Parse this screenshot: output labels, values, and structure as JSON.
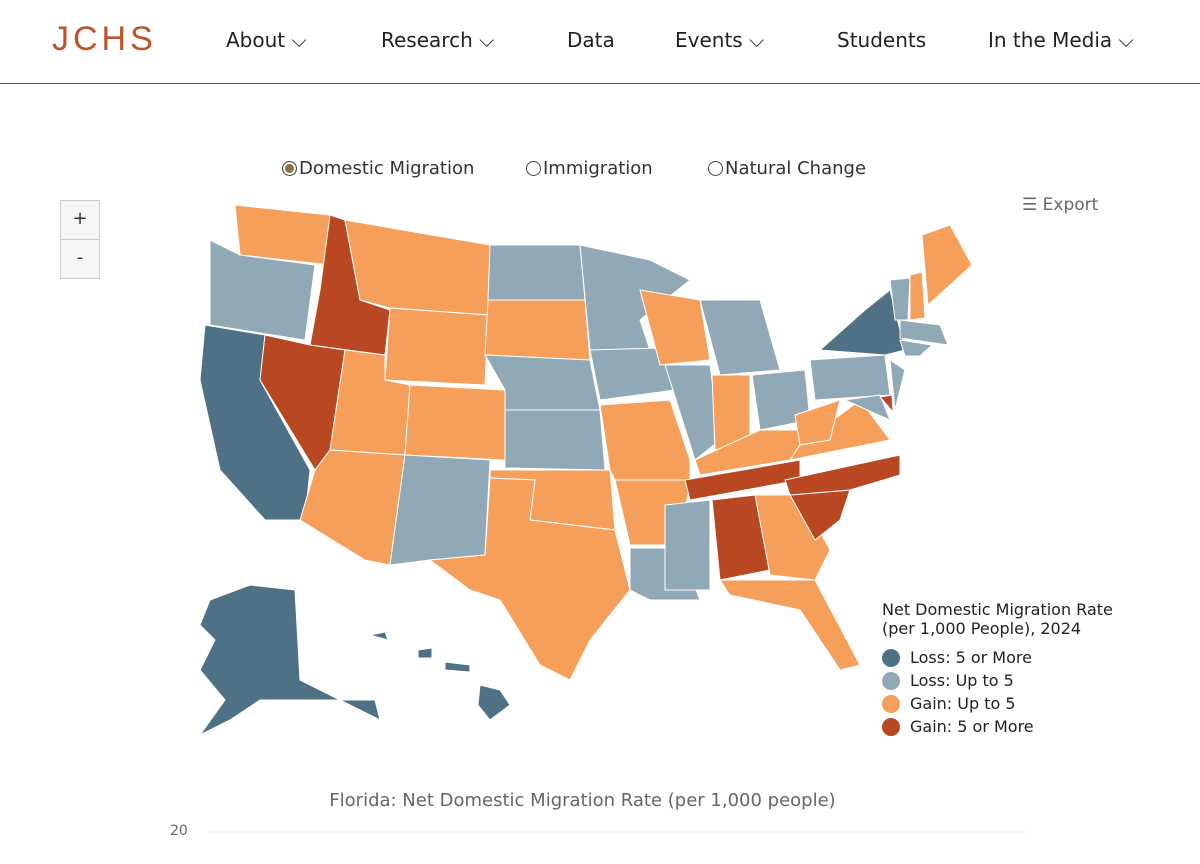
{
  "nav": {
    "logo": "JCHS",
    "items": [
      "About",
      "Research",
      "Data",
      "Events",
      "Students",
      "In the Media"
    ]
  },
  "options": [
    "Domestic Migration",
    "Immigration",
    "Natural Change"
  ],
  "zoom": [
    "+",
    "-"
  ],
  "export": "Export",
  "legend": {
    "title": "Net Domestic Migration Rate (per 1,000 People), 2024",
    "items": [
      {
        "label": "Loss: 5 or More",
        "color": "#4e7186"
      },
      {
        "label": "Loss: Up to 5",
        "color": "#91a8b6"
      },
      {
        "label": "Gain: Up to 5",
        "color": "#f59f5b"
      },
      {
        "label": "Gain: 5 or More",
        "color": "#b84722"
      }
    ]
  },
  "chart": {
    "title": "Florida: Net Domestic Migration Rate (per 1,000 people)",
    "yticks": [
      20
    ]
  }
}
